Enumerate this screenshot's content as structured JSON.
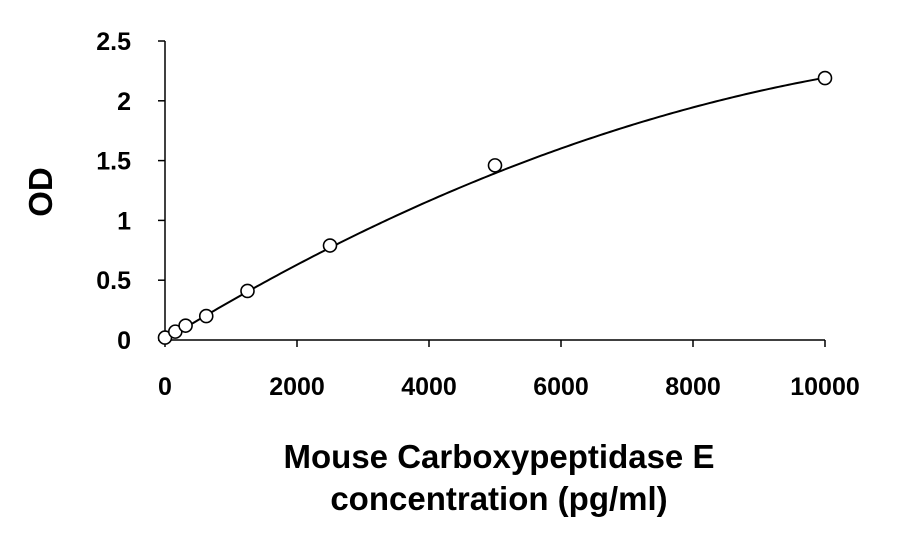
{
  "chart_data": {
    "type": "scatter",
    "title": "",
    "xlabel_lines": [
      "Mouse Carboxypeptidase E",
      "concentration (pg/ml)"
    ],
    "ylabel": "OD",
    "xlim": [
      0,
      10000
    ],
    "ylim": [
      0,
      2.5
    ],
    "x_ticks": [
      0,
      2000,
      4000,
      6000,
      8000,
      10000
    ],
    "x_tick_labels": [
      "0",
      "2000",
      "4000",
      "6000",
      "8000",
      "10000"
    ],
    "y_ticks": [
      0,
      0.5,
      1,
      1.5,
      2,
      2.5
    ],
    "y_tick_labels": [
      "0",
      "0.5",
      "1",
      "1.5",
      "2",
      "2.5"
    ],
    "grid": false,
    "legend": "none",
    "series": [
      {
        "marker": "open-circle",
        "x": [
          0,
          156,
          312,
          625,
          1250,
          2500,
          5000,
          10000
        ],
        "y": [
          0.02,
          0.07,
          0.12,
          0.2,
          0.41,
          0.79,
          1.46,
          2.19
        ]
      }
    ],
    "trendline": {
      "type": "polynomial-2",
      "coefficients": [
        0.0,
        0.0003383,
        -1.19e-08
      ]
    }
  }
}
